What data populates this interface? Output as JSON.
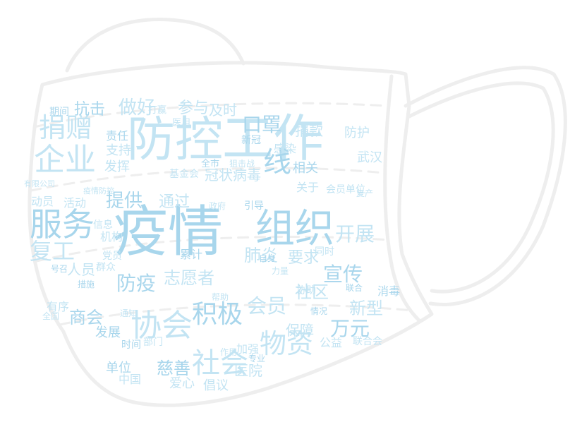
{
  "colors": {
    "word": "#c3e4f3",
    "word_dark": "#a8d6ec",
    "outline": "#eeeeee"
  },
  "words": [
    "疫情",
    "防控",
    "工作",
    "组织",
    "企业",
    "捐赠",
    "服务",
    "复工",
    "协会",
    "积极",
    "社会",
    "物资",
    "口罩",
    "开展",
    "做好",
    "抗击",
    "参与",
    "及时",
    "线",
    "感染",
    "武汉",
    "宣传",
    "社区",
    "会员",
    "万元",
    "新型",
    "志愿者",
    "防疫",
    "肺炎",
    "医院",
    "慈善",
    "保障",
    "冠状病毒",
    "提供",
    "通过",
    "人员",
    "商会",
    "支持",
    "发挥",
    "责任",
    "要求",
    "倡议",
    "单位",
    "中国",
    "爱心",
    "发展",
    "有序",
    "部门",
    "时间",
    "防护",
    "捐款",
    "新冠",
    "动员",
    "活动",
    "期间",
    "打赢",
    "医用",
    "全市",
    "基金会",
    "狙击战",
    "相关",
    "关于",
    "会员单位",
    "引导",
    "信息",
    "机构",
    "累计",
    "党员",
    "群众",
    "措施",
    "全国",
    "政府",
    "专业",
    "复产",
    "加强",
    "号召",
    "联合会",
    "公益",
    "消毒",
    "同时",
    "作用",
    "情况",
    "通知",
    "协助",
    "联合",
    "有限公司",
    "疫情防控",
    "自身",
    "力量",
    "帮助"
  ]
}
